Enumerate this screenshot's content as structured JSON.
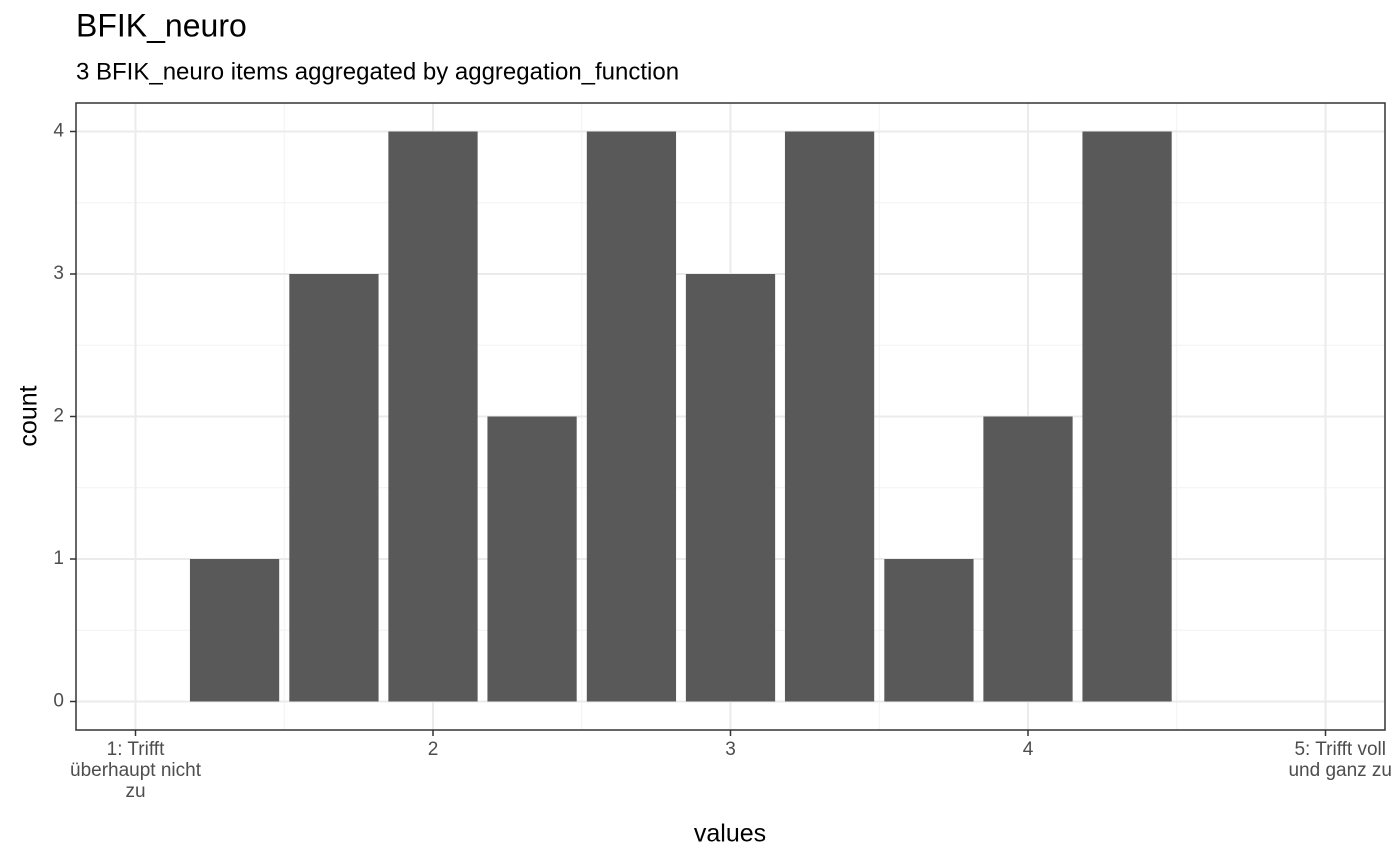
{
  "chart_data": {
    "type": "bar",
    "title": "BFIK_neuro",
    "subtitle": "3 BFIK_neuro items aggregated by aggregation_function",
    "x_label": "values",
    "y_label": "count",
    "x": [
      1.333,
      1.667,
      2,
      2.333,
      2.667,
      3,
      3.333,
      3.667,
      4,
      4.333
    ],
    "values": [
      1,
      3,
      4,
      2,
      4,
      3,
      4,
      1,
      2,
      4
    ],
    "color": "#595959",
    "xlim": [
      0.8,
      5.2
    ],
    "xticks": [
      {
        "value": 1,
        "label": "1: Trifft\nüberhaupt nicht\nzu"
      },
      2,
      3,
      4,
      {
        "value": 5,
        "label": "5: Trifft voll\nund ganz zu"
      }
    ],
    "ylim": [
      -0.2,
      4.2
    ],
    "yticks": [
      0,
      1,
      2,
      3,
      4
    ],
    "grid": true
  }
}
